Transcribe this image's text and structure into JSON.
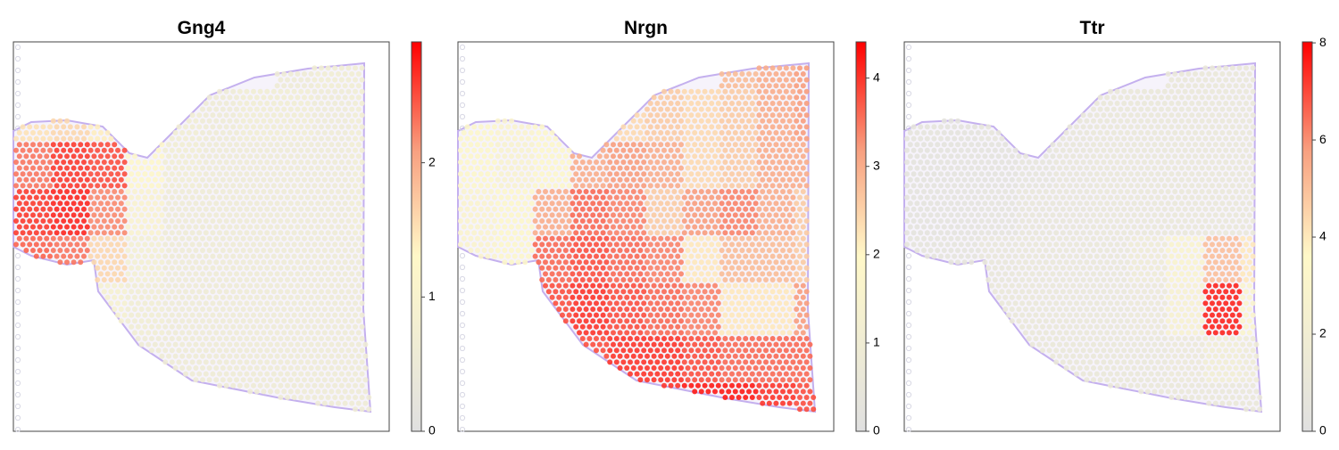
{
  "chart_data": [
    {
      "type": "heatmap",
      "title": "Gng4",
      "clim": [
        0,
        2.9
      ],
      "cticks": [
        0,
        1,
        2
      ],
      "values": [
        [
          null,
          null,
          null,
          null,
          null,
          null,
          null,
          0.6,
          0.7,
          0.7
        ],
        [
          1.5,
          1.6,
          1.4,
          1.0,
          0.7,
          0.6,
          0.7,
          0.7,
          0.6,
          0.7
        ],
        [
          2.3,
          2.6,
          2.5,
          1.2,
          0.7,
          0.6,
          0.6,
          0.6,
          0.6,
          0.7
        ],
        [
          2.6,
          2.7,
          2.2,
          1.0,
          0.6,
          0.6,
          0.6,
          0.6,
          0.6,
          0.7
        ],
        [
          2.4,
          2.3,
          1.6,
          0.8,
          0.6,
          0.6,
          0.6,
          0.6,
          0.6,
          0.6
        ],
        [
          null,
          null,
          0.9,
          0.7,
          0.6,
          0.6,
          0.6,
          0.6,
          0.6,
          0.6
        ],
        [
          null,
          null,
          null,
          0.6,
          0.6,
          0.6,
          0.6,
          0.6,
          0.6,
          0.6
        ],
        [
          null,
          null,
          null,
          null,
          null,
          0.6,
          0.6,
          0.6,
          0.6,
          0.6
        ]
      ]
    },
    {
      "type": "heatmap",
      "title": "Nrgn",
      "clim": [
        0,
        4.41
      ],
      "cticks": [
        0,
        1,
        2,
        3,
        4
      ],
      "values": [
        [
          null,
          null,
          null,
          null,
          null,
          null,
          null,
          2.8,
          3.0,
          3.2
        ],
        [
          1.8,
          1.6,
          1.8,
          2.0,
          2.4,
          2.6,
          2.4,
          2.6,
          3.0,
          3.2
        ],
        [
          1.8,
          1.5,
          1.8,
          3.0,
          3.2,
          3.0,
          2.4,
          2.6,
          3.0,
          3.0
        ],
        [
          1.6,
          1.8,
          3.0,
          3.6,
          3.4,
          2.6,
          3.2,
          3.4,
          3.0,
          2.6
        ],
        [
          1.6,
          1.8,
          3.6,
          3.8,
          3.6,
          3.4,
          2.2,
          2.8,
          2.8,
          2.6
        ],
        [
          null,
          null,
          3.8,
          4.0,
          3.8,
          3.6,
          3.4,
          2.2,
          2.2,
          3.2
        ],
        [
          null,
          null,
          null,
          3.8,
          4.0,
          4.0,
          3.8,
          3.6,
          3.6,
          3.6
        ],
        [
          null,
          null,
          null,
          null,
          null,
          4.0,
          4.2,
          4.2,
          4.0,
          3.8
        ]
      ]
    },
    {
      "type": "heatmap",
      "title": "Ttr",
      "clim": [
        0,
        8.02
      ],
      "cticks": [
        0,
        2,
        4,
        6,
        8
      ],
      "values": [
        [
          null,
          null,
          null,
          null,
          null,
          null,
          null,
          1.2,
          1.2,
          1.2
        ],
        [
          0.6,
          0.5,
          0.8,
          1.0,
          1.0,
          1.2,
          1.2,
          1.2,
          1.2,
          1.2
        ],
        [
          0.5,
          0.5,
          0.5,
          0.8,
          1.0,
          1.2,
          1.2,
          1.2,
          1.2,
          1.2
        ],
        [
          0.5,
          0.5,
          0.6,
          1.0,
          1.0,
          1.2,
          1.2,
          1.2,
          1.2,
          1.2
        ],
        [
          0.6,
          0.6,
          1.0,
          1.2,
          1.2,
          1.2,
          1.6,
          2.8,
          5.0,
          4.0
        ],
        [
          null,
          null,
          1.2,
          1.2,
          1.2,
          1.2,
          1.4,
          2.6,
          7.5,
          3.0
        ],
        [
          null,
          null,
          null,
          1.2,
          1.2,
          1.2,
          1.2,
          1.4,
          2.0,
          1.6
        ],
        [
          null,
          null,
          null,
          null,
          null,
          1.2,
          1.2,
          1.2,
          1.2,
          1.2
        ]
      ]
    }
  ]
}
